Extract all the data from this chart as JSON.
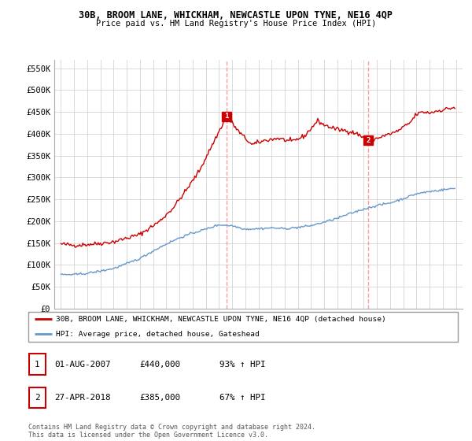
{
  "title_line1": "30B, BROOM LANE, WHICKHAM, NEWCASTLE UPON TYNE, NE16 4QP",
  "title_line2": "Price paid vs. HM Land Registry's House Price Index (HPI)",
  "ylim": [
    0,
    570000
  ],
  "yticks": [
    0,
    50000,
    100000,
    150000,
    200000,
    250000,
    300000,
    350000,
    400000,
    450000,
    500000,
    550000
  ],
  "ytick_labels": [
    "£0",
    "£50K",
    "£100K",
    "£150K",
    "£200K",
    "£250K",
    "£300K",
    "£350K",
    "£400K",
    "£450K",
    "£500K",
    "£550K"
  ],
  "red_line_label": "30B, BROOM LANE, WHICKHAM, NEWCASTLE UPON TYNE, NE16 4QP (detached house)",
  "blue_line_label": "HPI: Average price, detached house, Gateshead",
  "sale1_price": 440000,
  "sale1_label": "1",
  "sale1_pct": "93% ↑ HPI",
  "sale2_price": 385000,
  "sale2_label": "2",
  "sale2_pct": "67% ↑ HPI",
  "annotation1_date_str": "01-AUG-2007",
  "annotation2_date_str": "27-APR-2018",
  "footer": "Contains HM Land Registry data © Crown copyright and database right 2024.\nThis data is licensed under the Open Government Licence v3.0.",
  "red_color": "#cc0000",
  "blue_color": "#6699cc",
  "dashed_color": "#ff9999",
  "grid_color": "#cccccc",
  "sale1_x": 2007.583,
  "sale2_x": 2018.333
}
